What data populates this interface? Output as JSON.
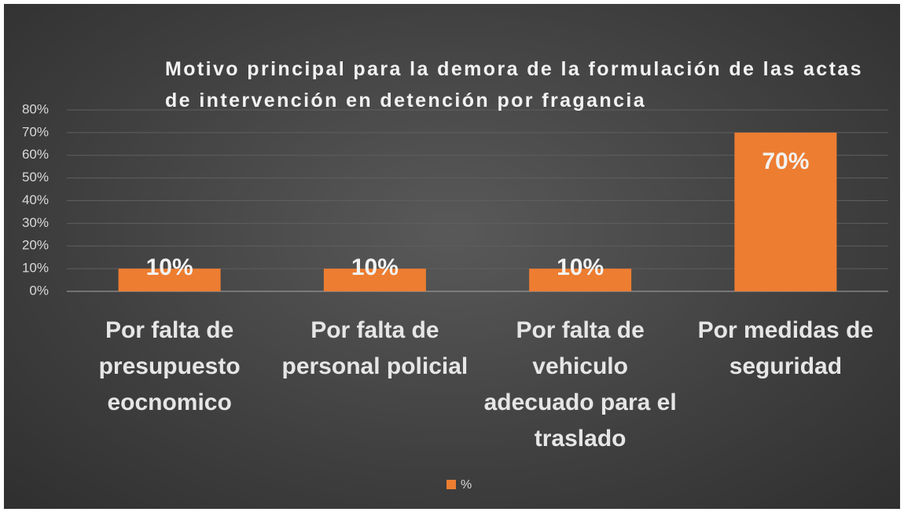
{
  "chart_data": {
    "type": "bar",
    "title": "Motivo principal para la demora de la formulación de las actas de intervención en detención por fragancia",
    "categories": [
      "Por falta de presupuesto eocnomico",
      "Por falta de personal policial",
      "Por falta de vehiculo adecuado para el traslado",
      "Por medidas de seguridad"
    ],
    "series": [
      {
        "name": "%",
        "color": "#ed7d31",
        "values": [
          10,
          10,
          10,
          70
        ],
        "value_labels": [
          "10%",
          "10%",
          "10%",
          "70%"
        ]
      }
    ],
    "ylim": [
      0,
      80
    ],
    "yticks": [
      {
        "value": 0,
        "label": "0%"
      },
      {
        "value": 10,
        "label": "10%"
      },
      {
        "value": 20,
        "label": "20%"
      },
      {
        "value": 30,
        "label": "30%"
      },
      {
        "value": 40,
        "label": "40%"
      },
      {
        "value": 50,
        "label": "50%"
      },
      {
        "value": 60,
        "label": "60%"
      },
      {
        "value": 70,
        "label": "70%"
      },
      {
        "value": 80,
        "label": "80%"
      }
    ],
    "grid": true,
    "legend": "bottom"
  }
}
